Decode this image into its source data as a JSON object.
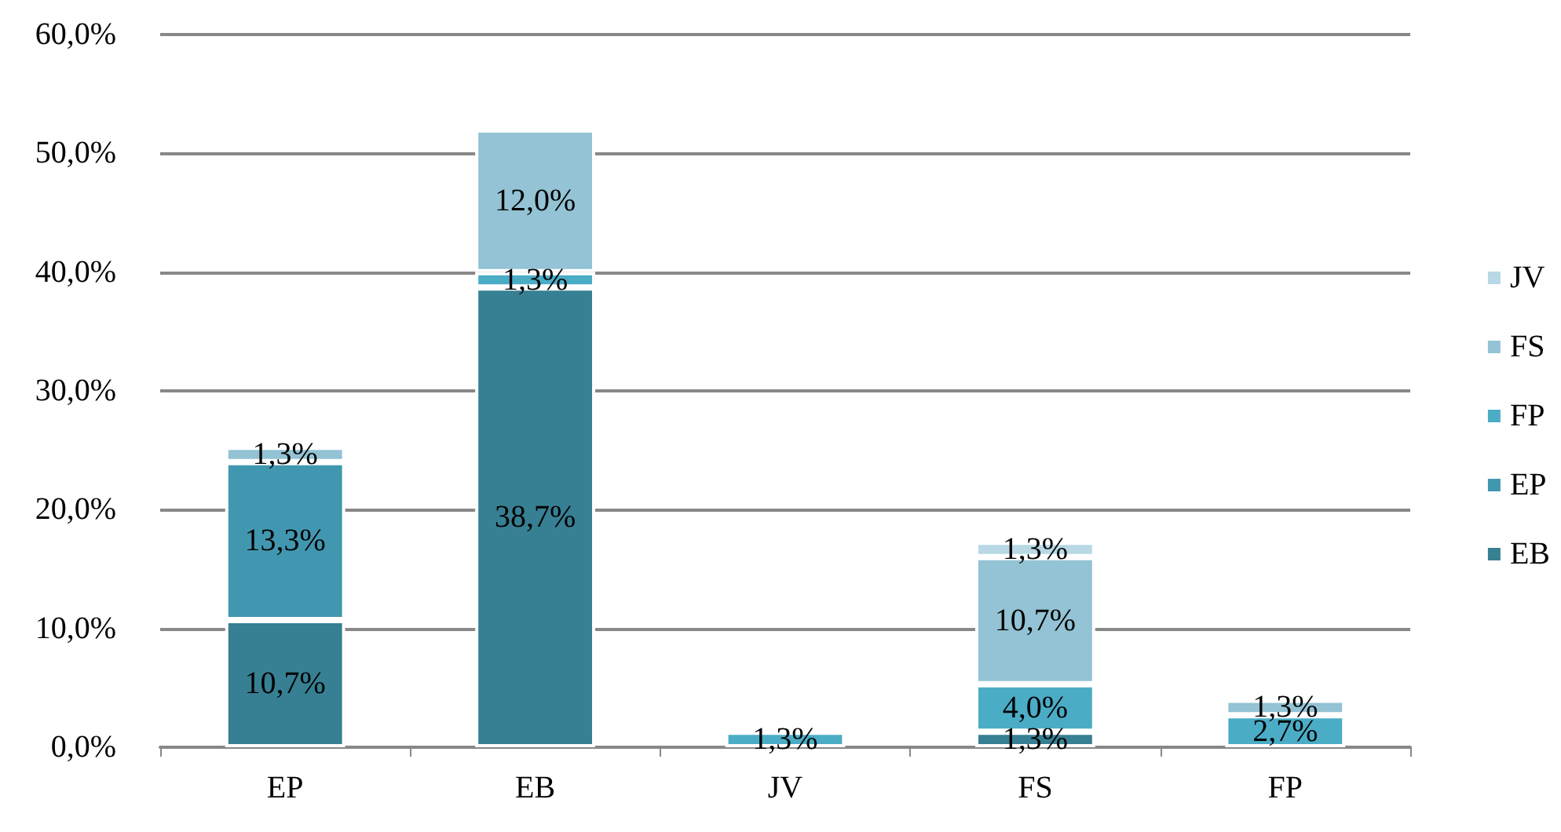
{
  "chart_data": {
    "type": "bar",
    "stacked": true,
    "categories": [
      "EP",
      "EB",
      "JV",
      "FS",
      "FP"
    ],
    "series": [
      {
        "name": "EB",
        "color": "#377f93",
        "values": [
          10.7,
          38.7,
          null,
          1.3,
          null
        ],
        "value_labels": [
          "10,7%",
          "38,7%",
          null,
          "1,3%",
          null
        ]
      },
      {
        "name": "EP",
        "color": "#4297b0",
        "values": [
          13.3,
          null,
          null,
          null,
          null
        ],
        "value_labels": [
          "13,3%",
          null,
          null,
          null,
          null
        ]
      },
      {
        "name": "FP",
        "color": "#4bacc6",
        "values": [
          null,
          1.3,
          1.3,
          4.0,
          2.7
        ],
        "value_labels": [
          null,
          "1,3%",
          "1,3%",
          "4,0%",
          "2,7%"
        ]
      },
      {
        "name": "FS",
        "color": "#93c3d4",
        "values": [
          1.3,
          12.0,
          null,
          10.7,
          1.3
        ],
        "value_labels": [
          "1,3%",
          "12,0%",
          null,
          "10,7%",
          "1,3%"
        ]
      },
      {
        "name": "JV",
        "color": "#b7d8e4",
        "values": [
          null,
          null,
          null,
          1.3,
          null
        ],
        "value_labels": [
          null,
          null,
          null,
          "1,3%",
          null
        ]
      }
    ],
    "ylim": [
      0,
      60
    ],
    "yticks": [
      {
        "value": 0,
        "label": "0,0%"
      },
      {
        "value": 10,
        "label": "10,0%"
      },
      {
        "value": 20,
        "label": "20,0%"
      },
      {
        "value": 30,
        "label": "30,0%"
      },
      {
        "value": 40,
        "label": "40,0%"
      },
      {
        "value": 50,
        "label": "50,0%"
      },
      {
        "value": 60,
        "label": "60,0%"
      }
    ],
    "grid": "y",
    "legend": "right"
  }
}
